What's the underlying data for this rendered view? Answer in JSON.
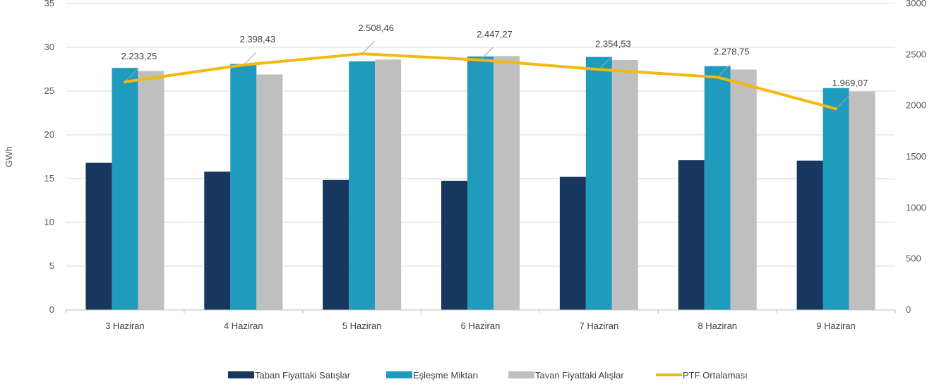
{
  "chart_data": {
    "type": "bar",
    "combo": "bar+line",
    "title": "",
    "xlabel": "",
    "ylabel": "GWh",
    "ylim": [
      0,
      35
    ],
    "y_ticks": [
      "0",
      "5",
      "10",
      "15",
      "20",
      "25",
      "30",
      "35"
    ],
    "y2lim": [
      0,
      3000
    ],
    "y2_ticks": [
      "0",
      "500",
      "1000",
      "1500",
      "2000",
      "2500",
      "3000"
    ],
    "grid": true,
    "legend_position": "bottom",
    "categories": [
      "3 Haziran",
      "4 Haziran",
      "5 Haziran",
      "6 Haziran",
      "7 Haziran",
      "8 Haziran",
      "9 Haziran"
    ],
    "series": [
      {
        "name": "Taban Fiyattaki Satışlar",
        "type": "bar",
        "axis": "left",
        "color": "#17375e",
        "values": [
          16.8,
          15.8,
          14.85,
          14.75,
          15.2,
          17.1,
          17.05
        ]
      },
      {
        "name": "Eşleşme Miktarı",
        "type": "bar",
        "axis": "left",
        "color": "#1f9bbd",
        "values": [
          27.65,
          28.1,
          28.4,
          28.95,
          28.9,
          27.85,
          25.35
        ]
      },
      {
        "name": "Tavan Fiyattaki Alışlar",
        "type": "bar",
        "axis": "left",
        "color": "#bfbfbf",
        "values": [
          27.3,
          26.9,
          28.6,
          29.0,
          28.55,
          27.45,
          24.95
        ]
      },
      {
        "name": "PTF Ortalaması",
        "type": "line",
        "axis": "right",
        "color": "#f2b90f",
        "values": [
          2233.25,
          2398.43,
          2508.46,
          2447.27,
          2354.53,
          2278.75,
          1969.07
        ],
        "labels": [
          "2.233,25",
          "2.398,43",
          "2.508,46",
          "2.447,27",
          "2.354,53",
          "2.278,75",
          "1.969,07"
        ]
      }
    ]
  }
}
